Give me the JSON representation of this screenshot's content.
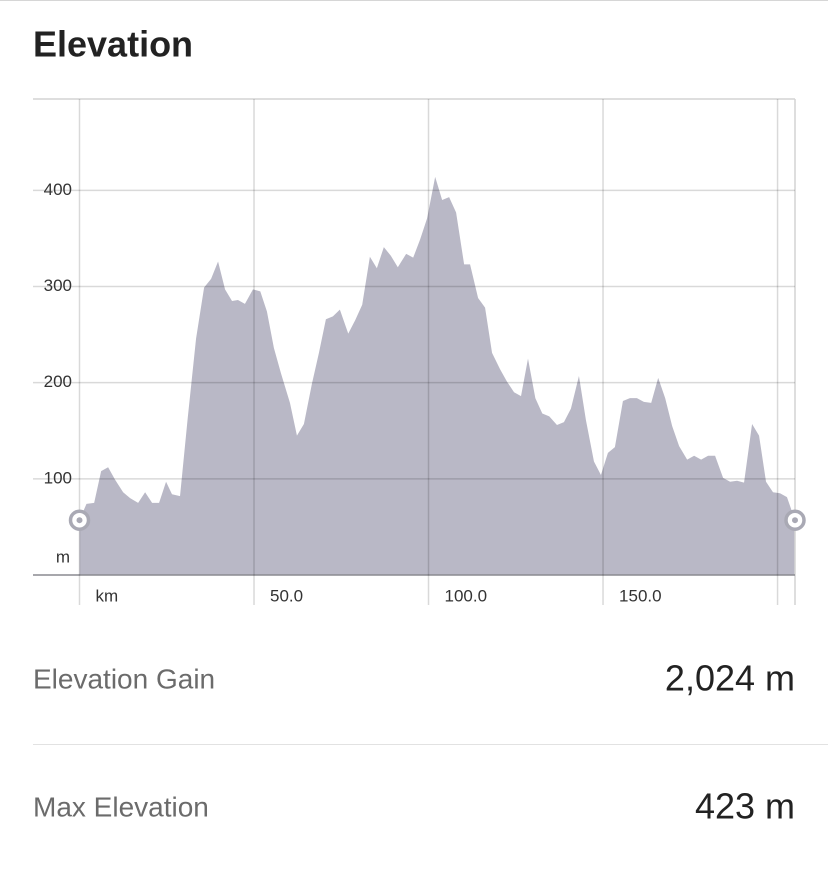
{
  "header": {
    "title": "Elevation"
  },
  "chart_data": {
    "type": "area",
    "color": "#b9b8c6",
    "x": [
      0,
      2,
      4.2,
      6.2,
      8.2,
      10.2,
      12.5,
      14.5,
      16.8,
      18.8,
      20.8,
      22.8,
      24.8,
      26.5,
      28.8,
      31,
      33.4,
      35.7,
      37.7,
      39.7,
      41.7,
      43.7,
      45.4,
      47.4,
      49.7,
      51.8,
      53.7,
      55.7,
      57.7,
      60.3,
      62.3,
      64.3,
      66.6,
      68.6,
      70.6,
      72.6,
      74.6,
      77,
      79,
      81,
      83.2,
      85.2,
      87.2,
      89.2,
      91.2,
      93.6,
      95.6,
      97.6,
      99.6,
      101.9,
      103.9,
      105.9,
      107.9,
      110.2,
      111.9,
      114.2,
      116.2,
      118.2,
      120.5,
      122.5,
      124.5,
      126.5,
      128.5,
      130.6,
      132.6,
      134.6,
      136.8,
      138.8,
      140.8,
      143.1,
      145.1,
      147.4,
      149.4,
      151.4,
      153.4,
      155.7,
      157.7,
      159.7,
      161.7,
      163.8,
      165.8,
      167.8,
      169.8,
      171.8,
      174.1,
      176.1,
      178.1,
      180.1,
      182.1,
      184.4,
      186.4,
      188.4,
      190.4,
      192.7,
      194.7,
      196.7,
      198.7,
      200.7,
      202.7,
      205
    ],
    "values": [
      57,
      74,
      75,
      108,
      112,
      99,
      86,
      80,
      75,
      86,
      75,
      75,
      97,
      84,
      82,
      163,
      246,
      299,
      308,
      326,
      297,
      285,
      286,
      282,
      297,
      295,
      274,
      236,
      210,
      179,
      145,
      157,
      199,
      231,
      266,
      269,
      276,
      251,
      265,
      281,
      331,
      319,
      341,
      332,
      320,
      334,
      330,
      349,
      371,
      414,
      390,
      393,
      377,
      323,
      323,
      288,
      278,
      231,
      214,
      201,
      190,
      186,
      225,
      184,
      168,
      165,
      156,
      159,
      173,
      207,
      161,
      118,
      104,
      127,
      133,
      181,
      184,
      184,
      180,
      179,
      205,
      184,
      155,
      134,
      120,
      124,
      120,
      124,
      124,
      101,
      97,
      98,
      96,
      157,
      145,
      97,
      86,
      85,
      81,
      57
    ],
    "xlim": [
      0,
      205
    ],
    "ylim": [
      0,
      495
    ],
    "xticks": [
      {
        "value": 0,
        "label": "km"
      },
      {
        "value": 50,
        "label": "50.0"
      },
      {
        "value": 100,
        "label": "100.0"
      },
      {
        "value": 150,
        "label": "150.0"
      }
    ],
    "xgrid": [
      0,
      50,
      100,
      150,
      200
    ],
    "yticks": [
      100,
      200,
      300,
      400
    ],
    "y_label": "m",
    "grid": true
  },
  "stats": [
    {
      "label": "Elevation Gain",
      "value": "2,024 m"
    },
    {
      "label": "Max Elevation",
      "value": "423 m"
    }
  ]
}
